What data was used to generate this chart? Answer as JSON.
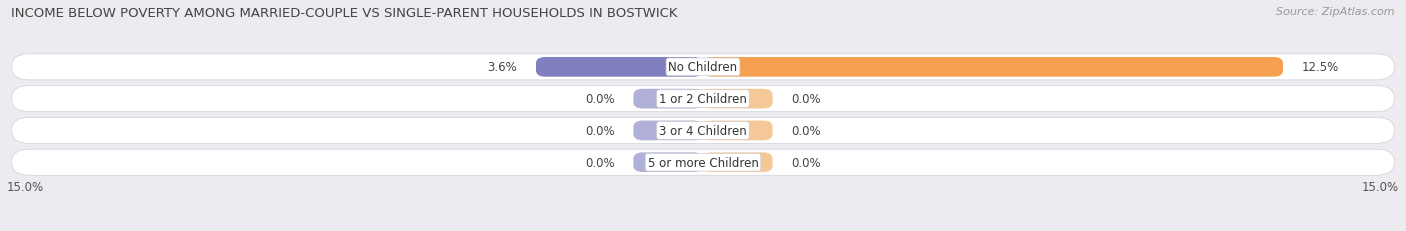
{
  "title": "INCOME BELOW POVERTY AMONG MARRIED-COUPLE VS SINGLE-PARENT HOUSEHOLDS IN BOSTWICK",
  "source": "Source: ZipAtlas.com",
  "categories": [
    "No Children",
    "1 or 2 Children",
    "3 or 4 Children",
    "5 or more Children"
  ],
  "married_values": [
    3.6,
    0.0,
    0.0,
    0.0
  ],
  "single_values": [
    12.5,
    0.0,
    0.0,
    0.0
  ],
  "xlim_left": -15.0,
  "xlim_right": 15.0,
  "x_left_label": "15.0%",
  "x_right_label": "15.0%",
  "married_color": "#8080c0",
  "married_color_light": "#b0b0d8",
  "single_color": "#f5a050",
  "single_color_light": "#f5c898",
  "row_bg_color": "#e8e8f0",
  "background_color": "#ebebf0",
  "title_fontsize": 9.5,
  "source_fontsize": 8,
  "label_fontsize": 8.5,
  "category_fontsize": 8.5,
  "zero_bar_width": 1.5
}
